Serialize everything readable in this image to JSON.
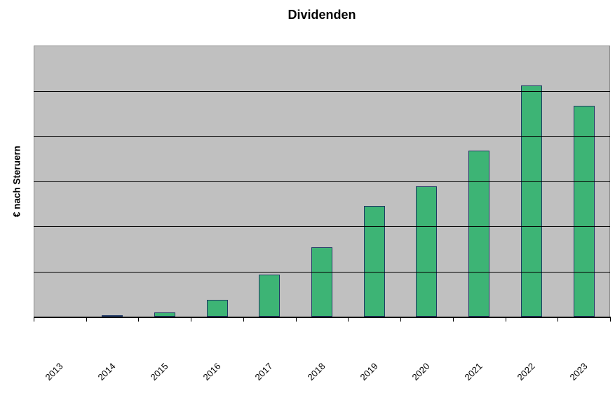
{
  "chart_data": {
    "type": "bar",
    "title": "Dividenden",
    "xlabel": "",
    "ylabel": "€ nach Steruern",
    "categories": [
      "2013",
      "2014",
      "2015",
      "2016",
      "2017",
      "2018",
      "2019",
      "2020",
      "2021",
      "2022",
      "2023"
    ],
    "values": [
      0,
      0.03,
      0.1,
      0.37,
      0.93,
      1.54,
      2.45,
      2.89,
      3.67,
      5.12,
      4.67
    ],
    "ylim": [
      0,
      6
    ],
    "gridline_interval": 1,
    "grid": "horizontal-only",
    "y_tick_labels_visible": false,
    "legend": "none",
    "colors": {
      "page_background": "#FFFFFF",
      "plot_background": "#C0C0C0",
      "plot_border": "#8A8A8A",
      "gridline": "#000000",
      "axis_line": "#000000",
      "tick": "#000000",
      "bar_fill": "#3DB475",
      "bar_border": "#1F3864",
      "text": "#000000"
    }
  }
}
